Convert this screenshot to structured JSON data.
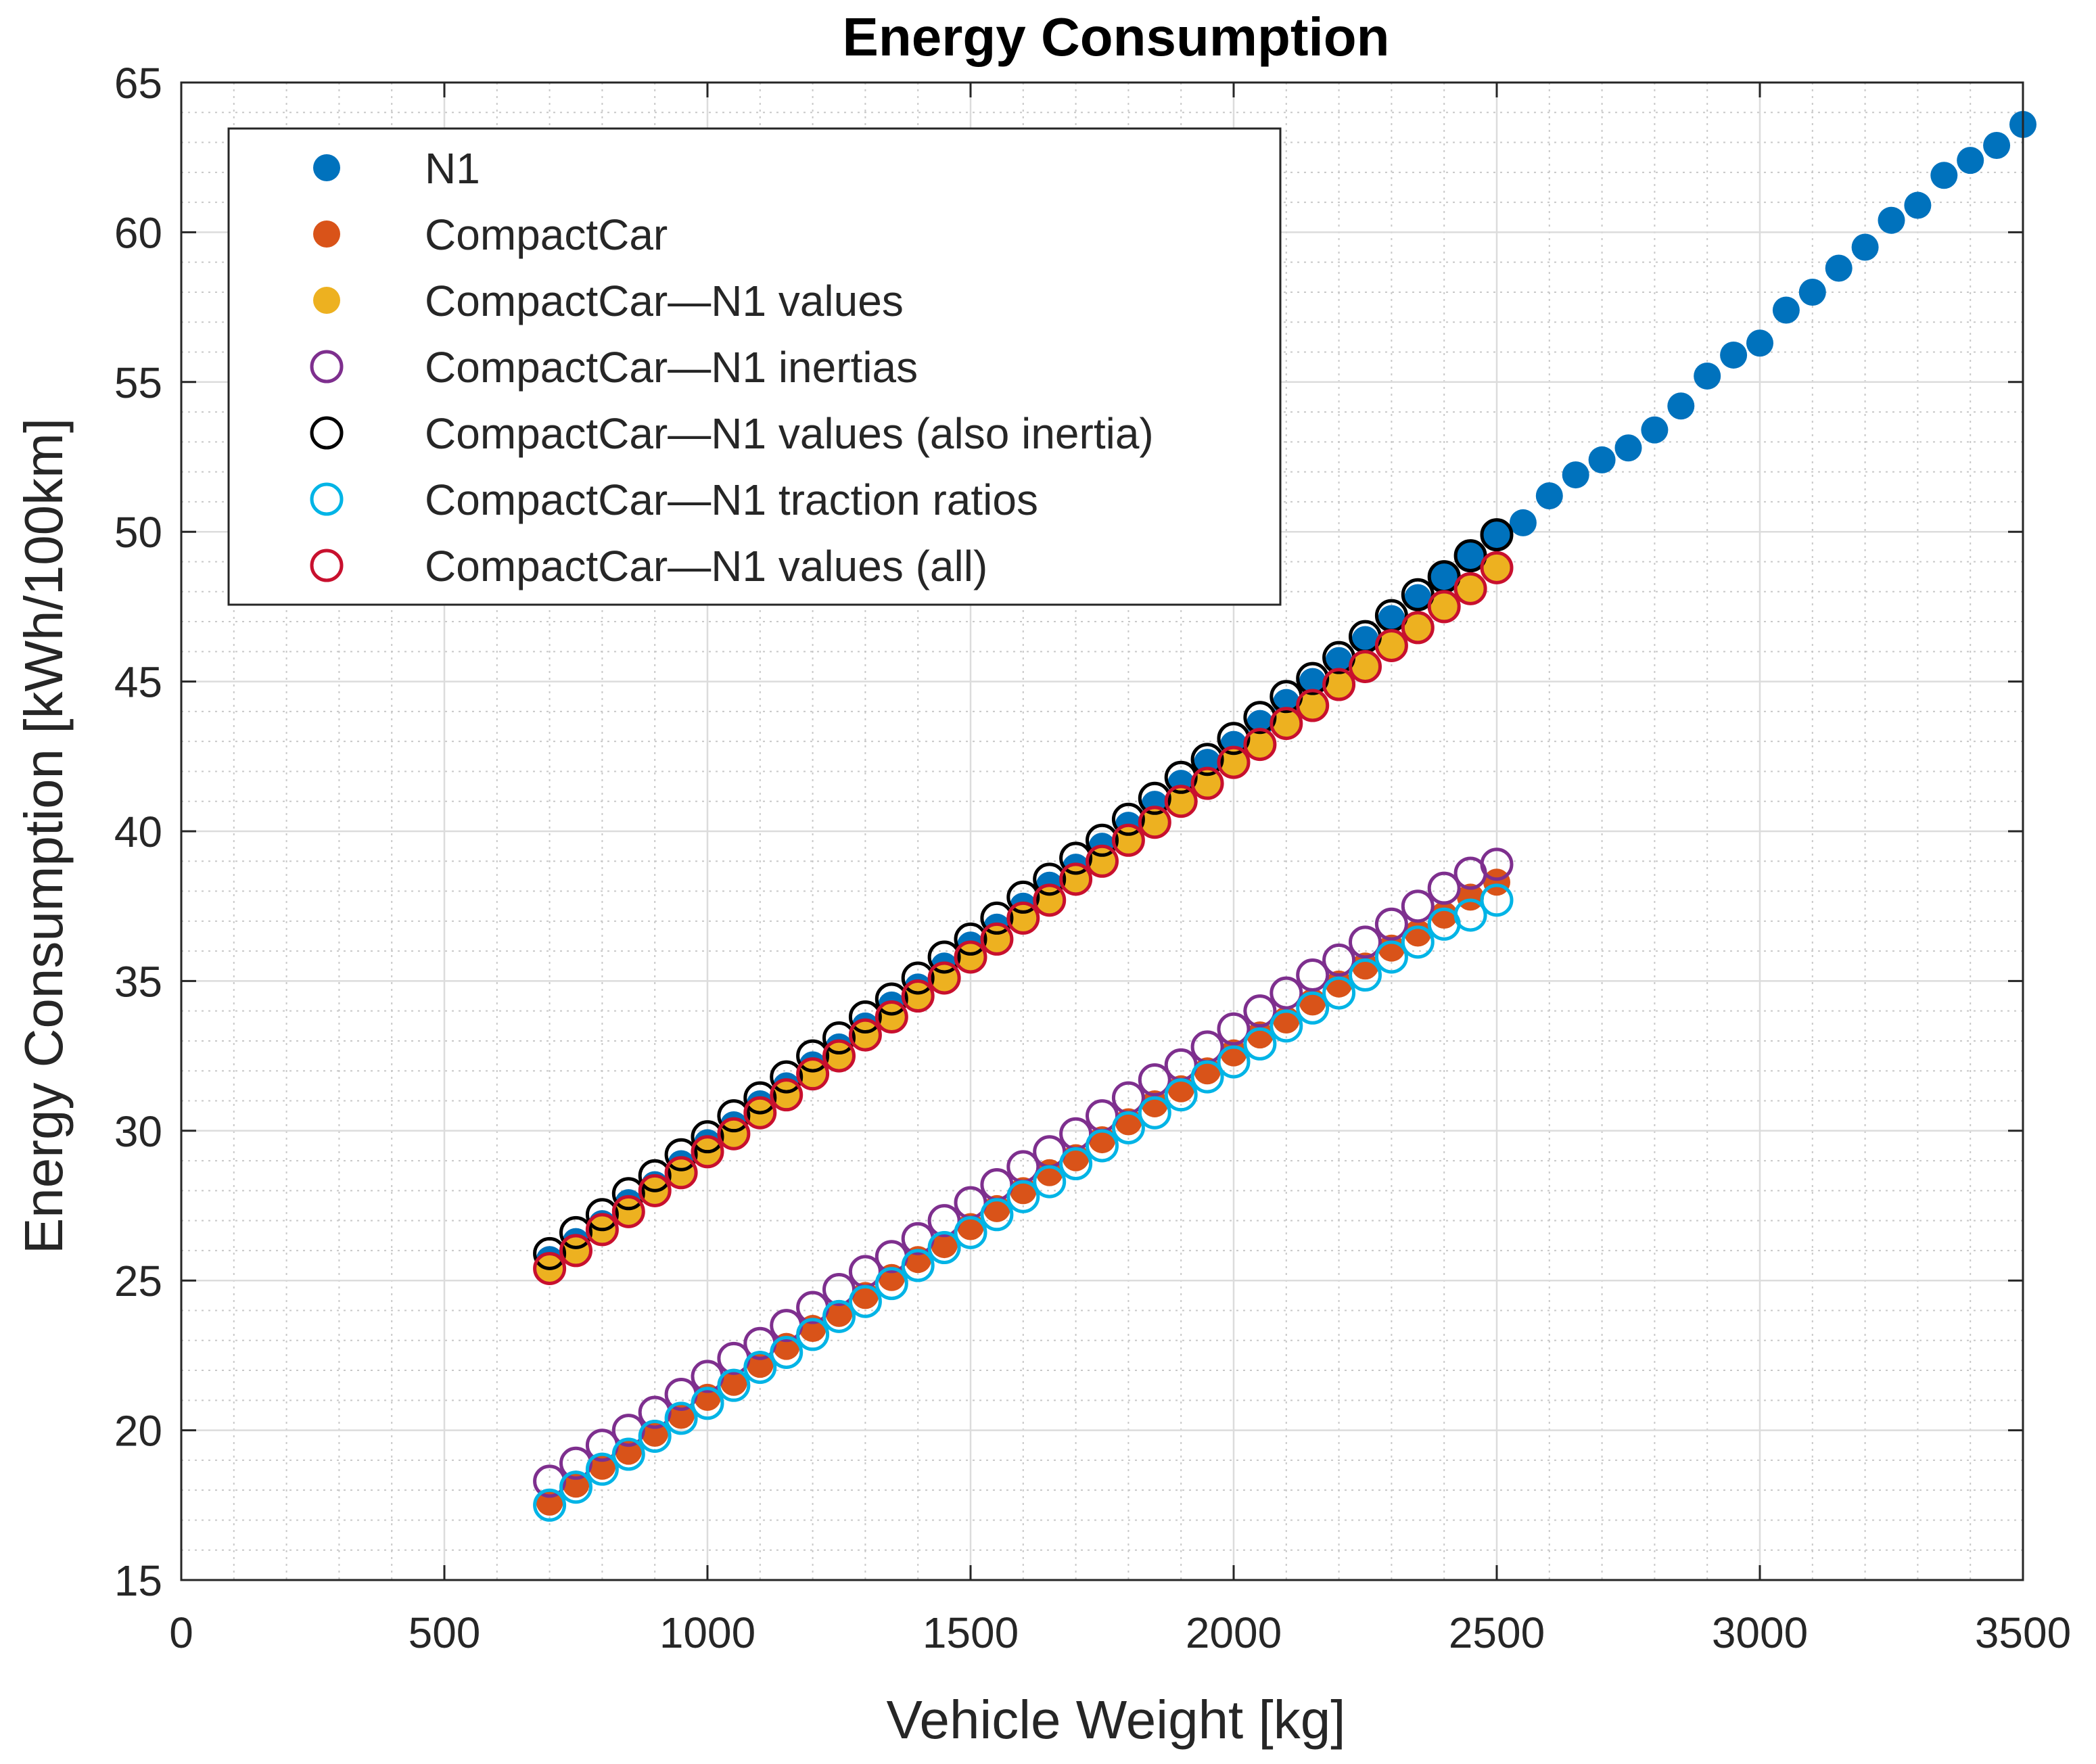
{
  "chart_data": {
    "type": "scatter",
    "title": "Energy Consumption",
    "xlabel": "Vehicle Weight [kg]",
    "ylabel": "Energy Consumption [kWh/100km]",
    "xlim": [
      0,
      3500
    ],
    "ylim": [
      15,
      65
    ],
    "xticks": [
      0,
      500,
      1000,
      1500,
      2000,
      2500,
      3000,
      3500
    ],
    "yticks": [
      15,
      20,
      25,
      30,
      35,
      40,
      45,
      50,
      55,
      60,
      65
    ],
    "grid": true,
    "minor_grid": true,
    "legend_position": "top-left",
    "series": [
      {
        "name": "N1",
        "marker": "filled-circle",
        "color": "#0072BD",
        "x": [
          700,
          750,
          800,
          850,
          900,
          950,
          1000,
          1050,
          1100,
          1150,
          1200,
          1250,
          1300,
          1350,
          1400,
          1450,
          1500,
          1550,
          1600,
          1650,
          1700,
          1750,
          1800,
          1850,
          1900,
          1950,
          2000,
          2050,
          2100,
          2150,
          2200,
          2250,
          2300,
          2350,
          2400,
          2450,
          2500,
          2550,
          2600,
          2650,
          2700,
          2750,
          2800,
          2850,
          2900,
          2950,
          3000,
          3050,
          3100,
          3150,
          3200,
          3250,
          3300,
          3350,
          3400,
          3450,
          3500
        ],
        "y": [
          25.7,
          26.3,
          26.9,
          27.6,
          28.2,
          28.9,
          29.6,
          30.2,
          30.9,
          31.5,
          32.2,
          32.8,
          33.5,
          34.2,
          34.8,
          35.5,
          36.2,
          36.8,
          37.5,
          38.2,
          38.8,
          39.5,
          40.2,
          40.9,
          41.6,
          42.3,
          42.9,
          43.6,
          44.3,
          45.0,
          45.7,
          46.4,
          47.1,
          47.8,
          48.5,
          49.2,
          49.9,
          50.3,
          51.2,
          51.9,
          52.4,
          52.8,
          53.4,
          54.2,
          55.2,
          55.9,
          56.3,
          57.4,
          58.0,
          58.8,
          59.5,
          60.4,
          60.9,
          61.9,
          62.4,
          62.9,
          63.6
        ]
      },
      {
        "name": "CompactCar",
        "marker": "filled-circle",
        "color": "#D95319",
        "x": [
          700,
          750,
          800,
          850,
          900,
          950,
          1000,
          1050,
          1100,
          1150,
          1200,
          1250,
          1300,
          1350,
          1400,
          1450,
          1500,
          1550,
          1600,
          1650,
          1700,
          1750,
          1800,
          1850,
          1900,
          1950,
          2000,
          2050,
          2100,
          2150,
          2200,
          2250,
          2300,
          2350,
          2400,
          2450,
          2500
        ],
        "y": [
          17.6,
          18.2,
          18.8,
          19.3,
          19.9,
          20.5,
          21.1,
          21.6,
          22.2,
          22.8,
          23.4,
          23.9,
          24.5,
          25.1,
          25.7,
          26.2,
          26.8,
          27.4,
          28.0,
          28.6,
          29.1,
          29.7,
          30.3,
          30.9,
          31.4,
          32.0,
          32.6,
          33.2,
          33.7,
          34.3,
          34.9,
          35.5,
          36.1,
          36.6,
          37.2,
          37.8,
          38.3
        ]
      },
      {
        "name": "CompactCar—N1 values",
        "marker": "filled-circle",
        "color": "#EDB120",
        "x": [
          700,
          750,
          800,
          850,
          900,
          950,
          1000,
          1050,
          1100,
          1150,
          1200,
          1250,
          1300,
          1350,
          1400,
          1450,
          1500,
          1550,
          1600,
          1650,
          1700,
          1750,
          1800,
          1850,
          1900,
          1950,
          2000,
          2050,
          2100,
          2150,
          2200,
          2250,
          2300,
          2350,
          2400,
          2450,
          2500
        ],
        "y": [
          25.4,
          26.0,
          26.7,
          27.3,
          28.0,
          28.6,
          29.3,
          29.9,
          30.6,
          31.2,
          31.9,
          32.5,
          33.2,
          33.8,
          34.5,
          35.1,
          35.8,
          36.4,
          37.1,
          37.7,
          38.4,
          39.0,
          39.7,
          40.3,
          41.0,
          41.6,
          42.3,
          42.9,
          43.6,
          44.2,
          44.9,
          45.5,
          46.2,
          46.8,
          47.5,
          48.1,
          48.8
        ]
      },
      {
        "name": "CompactCar—N1 inertias",
        "marker": "open-circle",
        "color": "#7E2F8E",
        "x": [
          700,
          750,
          800,
          850,
          900,
          950,
          1000,
          1050,
          1100,
          1150,
          1200,
          1250,
          1300,
          1350,
          1400,
          1450,
          1500,
          1550,
          1600,
          1650,
          1700,
          1750,
          1800,
          1850,
          1900,
          1950,
          2000,
          2050,
          2100,
          2150,
          2200,
          2250,
          2300,
          2350,
          2400,
          2450,
          2500
        ],
        "y": [
          18.3,
          18.9,
          19.5,
          20.0,
          20.6,
          21.2,
          21.8,
          22.4,
          22.9,
          23.5,
          24.1,
          24.7,
          25.3,
          25.8,
          26.4,
          27.0,
          27.6,
          28.2,
          28.8,
          29.3,
          29.9,
          30.5,
          31.1,
          31.7,
          32.2,
          32.8,
          33.4,
          34.0,
          34.6,
          35.2,
          35.7,
          36.3,
          36.9,
          37.5,
          38.1,
          38.6,
          38.9
        ]
      },
      {
        "name": "CompactCar—N1 values (also inertia)",
        "marker": "open-circle",
        "color": "#000000",
        "x": [
          700,
          750,
          800,
          850,
          900,
          950,
          1000,
          1050,
          1100,
          1150,
          1200,
          1250,
          1300,
          1350,
          1400,
          1450,
          1500,
          1550,
          1600,
          1650,
          1700,
          1750,
          1800,
          1850,
          1900,
          1950,
          2000,
          2050,
          2100,
          2150,
          2200,
          2250,
          2300,
          2350,
          2400,
          2450,
          2500
        ],
        "y": [
          25.9,
          26.6,
          27.2,
          27.9,
          28.5,
          29.2,
          29.8,
          30.5,
          31.1,
          31.8,
          32.5,
          33.1,
          33.8,
          34.4,
          35.1,
          35.8,
          36.4,
          37.1,
          37.8,
          38.4,
          39.1,
          39.7,
          40.4,
          41.1,
          41.8,
          42.4,
          43.1,
          43.8,
          44.5,
          45.1,
          45.8,
          46.5,
          47.2,
          47.9,
          48.5,
          49.2,
          49.9
        ]
      },
      {
        "name": "CompactCar—N1 traction ratios",
        "marker": "open-circle",
        "color": "#00B4E6",
        "x": [
          700,
          750,
          800,
          850,
          900,
          950,
          1000,
          1050,
          1100,
          1150,
          1200,
          1250,
          1300,
          1350,
          1400,
          1450,
          1500,
          1550,
          1600,
          1650,
          1700,
          1750,
          1800,
          1850,
          1900,
          1950,
          2000,
          2050,
          2100,
          2150,
          2200,
          2250,
          2300,
          2350,
          2400,
          2450,
          2500
        ],
        "y": [
          17.5,
          18.1,
          18.7,
          19.2,
          19.8,
          20.4,
          20.9,
          21.5,
          22.1,
          22.6,
          23.2,
          23.8,
          24.3,
          24.9,
          25.5,
          26.1,
          26.6,
          27.2,
          27.8,
          28.3,
          28.9,
          29.5,
          30.1,
          30.6,
          31.2,
          31.8,
          32.3,
          32.9,
          33.5,
          34.1,
          34.6,
          35.2,
          35.8,
          36.3,
          36.9,
          37.2,
          37.7
        ]
      },
      {
        "name": "CompactCar—N1 values (all)",
        "marker": "open-circle",
        "color": "#C8102E",
        "x": [
          700,
          750,
          800,
          850,
          900,
          950,
          1000,
          1050,
          1100,
          1150,
          1200,
          1250,
          1300,
          1350,
          1400,
          1450,
          1500,
          1550,
          1600,
          1650,
          1700,
          1750,
          1800,
          1850,
          1900,
          1950,
          2000,
          2050,
          2100,
          2150,
          2200,
          2250,
          2300,
          2350,
          2400,
          2450,
          2500
        ],
        "y": [
          25.4,
          26.0,
          26.7,
          27.3,
          28.0,
          28.6,
          29.3,
          29.9,
          30.6,
          31.2,
          31.9,
          32.5,
          33.2,
          33.8,
          34.5,
          35.1,
          35.8,
          36.4,
          37.1,
          37.7,
          38.4,
          39.0,
          39.7,
          40.3,
          41.0,
          41.6,
          42.3,
          42.9,
          43.6,
          44.2,
          44.9,
          45.5,
          46.2,
          46.8,
          47.5,
          48.1,
          48.8
        ]
      }
    ]
  }
}
